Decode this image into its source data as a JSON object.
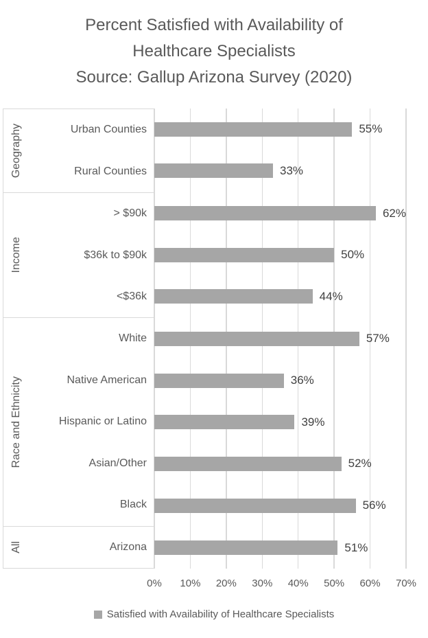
{
  "title": {
    "lines": [
      "Percent Satisfied with Availability of",
      "Healthcare Specialists",
      "Source: Gallup Arizona Survey (2020)"
    ]
  },
  "legend": {
    "label": "Satisfied with Availability of Healthcare Specialists"
  },
  "chart_data": {
    "type": "bar",
    "orientation": "horizontal",
    "title": "Percent Satisfied with Availability of Healthcare Specialists",
    "subtitle": "Source: Gallup Arizona Survey (2020)",
    "series_name": "Satisfied with Availability of Healthcare Specialists",
    "xlim": [
      0,
      70
    ],
    "x_tick_labels": [
      "0%",
      "10%",
      "20%",
      "30%",
      "40%",
      "50%",
      "60%",
      "70%"
    ],
    "x_tick_values": [
      0,
      10,
      20,
      30,
      40,
      50,
      60,
      70
    ],
    "grid": true,
    "legend_position": "bottom",
    "value_label_format": "percent",
    "groups": [
      {
        "label": "Geography",
        "items": [
          {
            "label": "Urban Counties",
            "value": 55,
            "value_label": "55%"
          },
          {
            "label": "Rural Counties",
            "value": 33,
            "value_label": "33%"
          }
        ]
      },
      {
        "label": "Income",
        "items": [
          {
            "label": "> $90k",
            "value": 62,
            "value_label": "62%"
          },
          {
            "label": "$36k to $90k",
            "value": 50,
            "value_label": "50%"
          },
          {
            "label": "<$36k",
            "value": 44,
            "value_label": "44%"
          }
        ]
      },
      {
        "label": "Race and Ethnicity",
        "items": [
          {
            "label": "White",
            "value": 57,
            "value_label": "57%"
          },
          {
            "label": "Native American",
            "value": 36,
            "value_label": "36%"
          },
          {
            "label": "Hispanic or Latino",
            "value": 39,
            "value_label": "39%"
          },
          {
            "label": "Asian/Other",
            "value": 52,
            "value_label": "52%"
          },
          {
            "label": "Black",
            "value": 56,
            "value_label": "56%"
          }
        ]
      },
      {
        "label": "All",
        "items": [
          {
            "label": "Arizona",
            "value": 51,
            "value_label": "51%"
          }
        ]
      }
    ],
    "colors": {
      "bar": "#a6a6a6",
      "gridline": "#d9d9d9",
      "title_text": "#595959",
      "axis_text": "#595959",
      "value_label_text": "#404040"
    }
  }
}
